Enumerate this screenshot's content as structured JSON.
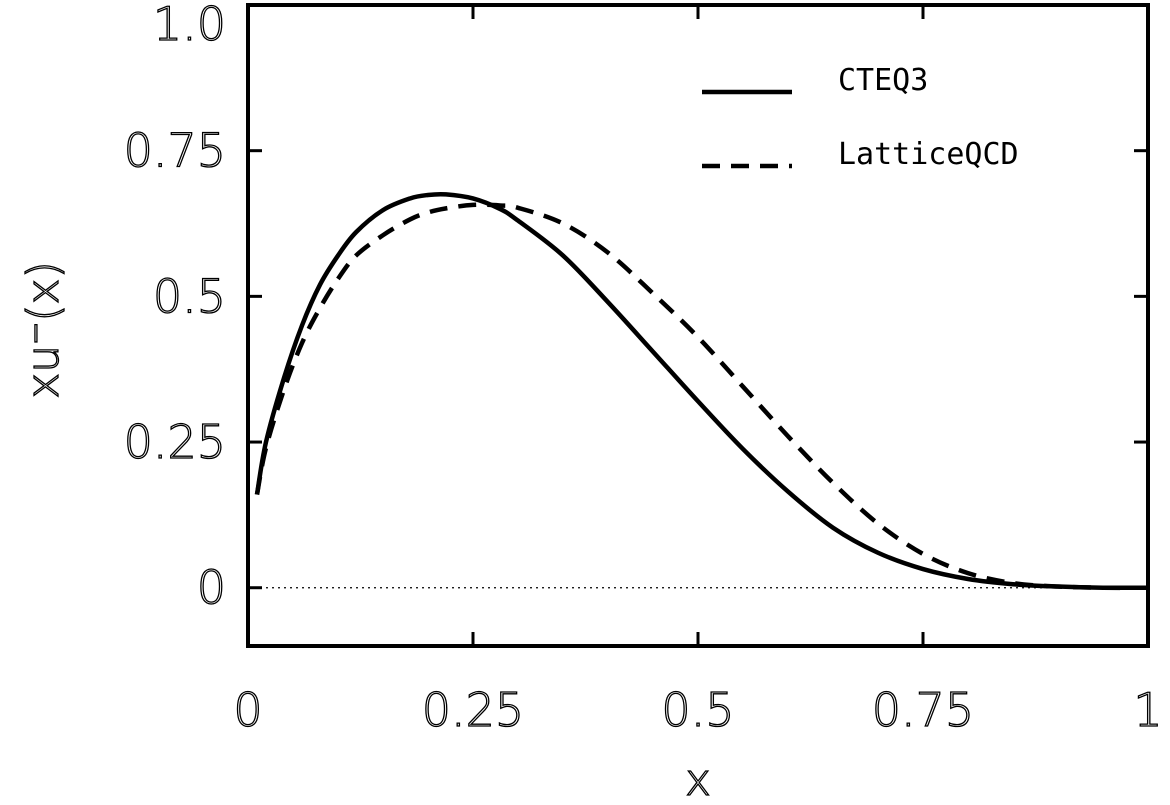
{
  "chart_data": {
    "type": "line",
    "title": "",
    "xlabel": "x",
    "ylabel": "xu⁻(x)",
    "xlim": [
      0,
      1
    ],
    "ylim": [
      -0.1,
      1.0
    ],
    "x_ticks": [
      "0",
      "0.25",
      "0.5",
      "0.75",
      "1"
    ],
    "x_tick_values": [
      0,
      0.25,
      0.5,
      0.75,
      1
    ],
    "y_ticks": [
      "0",
      "0.25",
      "0.5",
      "0.75",
      "1.0"
    ],
    "y_tick_values": [
      0,
      0.25,
      0.5,
      0.75,
      1.0
    ],
    "grid": false,
    "reference_line": {
      "y": 0,
      "style": "dotted"
    },
    "legend_position": "top-right",
    "series": [
      {
        "name": "CTEQ3",
        "style": "solid",
        "color": "#000000",
        "x": [
          0.01,
          0.02,
          0.04,
          0.06,
          0.08,
          0.1,
          0.12,
          0.15,
          0.18,
          0.2,
          0.22,
          0.25,
          0.28,
          0.3,
          0.35,
          0.4,
          0.45,
          0.5,
          0.55,
          0.6,
          0.65,
          0.7,
          0.75,
          0.8,
          0.85,
          0.9,
          0.95,
          1.0
        ],
        "y": [
          0.16,
          0.25,
          0.36,
          0.45,
          0.52,
          0.57,
          0.61,
          0.648,
          0.668,
          0.674,
          0.675,
          0.668,
          0.65,
          0.63,
          0.57,
          0.49,
          0.405,
          0.32,
          0.238,
          0.165,
          0.103,
          0.06,
          0.032,
          0.015,
          0.006,
          0.002,
          0.0,
          0.0
        ]
      },
      {
        "name": "LatticeQCD",
        "style": "dashed",
        "color": "#000000",
        "x": [
          0.01,
          0.02,
          0.04,
          0.06,
          0.08,
          0.1,
          0.12,
          0.15,
          0.18,
          0.2,
          0.22,
          0.25,
          0.28,
          0.3,
          0.35,
          0.4,
          0.45,
          0.5,
          0.55,
          0.6,
          0.65,
          0.7,
          0.75,
          0.8,
          0.85,
          0.9,
          0.95,
          1.0
        ],
        "y": [
          0.16,
          0.24,
          0.34,
          0.42,
          0.48,
          0.53,
          0.57,
          0.605,
          0.632,
          0.644,
          0.651,
          0.657,
          0.656,
          0.652,
          0.625,
          0.575,
          0.505,
          0.43,
          0.345,
          0.26,
          0.18,
          0.11,
          0.058,
          0.025,
          0.008,
          0.002,
          0.0,
          0.0
        ]
      }
    ]
  }
}
